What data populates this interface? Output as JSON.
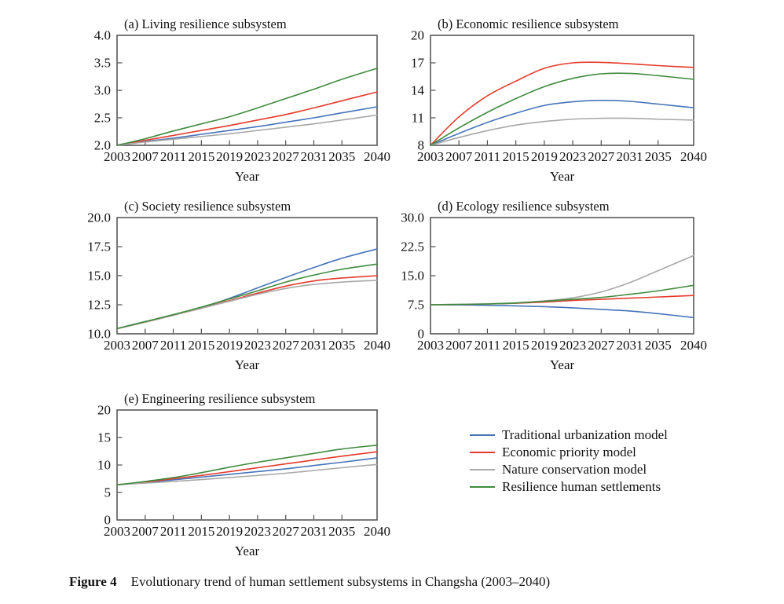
{
  "figure_caption": {
    "label": "Figure 4",
    "text": "Evolutionary trend of human settlement subsystems in Changsha (2003–2040)"
  },
  "legend": {
    "items": [
      {
        "label": "Traditional urbanization model",
        "color": "#4674b9"
      },
      {
        "label": "Economic priority model",
        "color": "#e53a2b"
      },
      {
        "label": "Nature conservation model",
        "color": "#a8a8a8"
      },
      {
        "label": "Resilience human settlements",
        "color": "#3f8b3d"
      }
    ]
  },
  "axis": {
    "xlabel": "Year",
    "xlim": [
      2003,
      2040
    ],
    "x_ticks": [
      2003,
      2007,
      2011,
      2015,
      2019,
      2023,
      2027,
      2031,
      2035,
      2040
    ],
    "color": "#4d4d4d",
    "text_color": "#111111"
  },
  "chart_data": [
    {
      "id": "a",
      "type": "line",
      "title": "(a) Living resilience subsystem",
      "xlabel": "Year",
      "x": [
        2003,
        2007,
        2011,
        2015,
        2019,
        2023,
        2027,
        2031,
        2035,
        2040
      ],
      "ylim": [
        2.0,
        4.0
      ],
      "y_ticks": [
        2.0,
        2.5,
        3.0,
        3.5,
        4.0
      ],
      "y_tick_labels": [
        "2.0",
        "2.5",
        "3.0",
        "3.5",
        "4.0"
      ],
      "series": [
        {
          "name": "Traditional urbanization model",
          "color": "#4674b9",
          "values": [
            2.0,
            2.07,
            2.13,
            2.2,
            2.27,
            2.34,
            2.42,
            2.5,
            2.59,
            2.7
          ]
        },
        {
          "name": "Economic priority model",
          "color": "#e53a2b",
          "values": [
            2.0,
            2.09,
            2.18,
            2.27,
            2.36,
            2.46,
            2.56,
            2.68,
            2.81,
            2.97
          ]
        },
        {
          "name": "Nature conservation model",
          "color": "#a8a8a8",
          "values": [
            2.0,
            2.06,
            2.11,
            2.16,
            2.21,
            2.27,
            2.33,
            2.39,
            2.46,
            2.55
          ]
        },
        {
          "name": "Resilience human settlements",
          "color": "#3f8b3d",
          "values": [
            2.0,
            2.12,
            2.26,
            2.39,
            2.52,
            2.68,
            2.85,
            3.02,
            3.2,
            3.4
          ]
        }
      ]
    },
    {
      "id": "b",
      "type": "line",
      "title": "(b) Economic resilience subsystem",
      "xlabel": "Year",
      "x": [
        2003,
        2007,
        2011,
        2015,
        2019,
        2023,
        2027,
        2031,
        2035,
        2040
      ],
      "ylim": [
        8,
        20
      ],
      "y_ticks": [
        8,
        11,
        14,
        17,
        20
      ],
      "y_tick_labels": [
        "8",
        "11",
        "14",
        "17",
        "20"
      ],
      "series": [
        {
          "name": "Traditional urbanization model",
          "color": "#4674b9",
          "values": [
            8,
            9.3,
            10.5,
            11.5,
            12.35,
            12.75,
            12.9,
            12.8,
            12.5,
            12.1
          ]
        },
        {
          "name": "Economic priority model",
          "color": "#e53a2b",
          "values": [
            8,
            11.1,
            13.4,
            15.0,
            16.4,
            17.0,
            17.05,
            16.9,
            16.7,
            16.5
          ]
        },
        {
          "name": "Nature conservation model",
          "color": "#a8a8a8",
          "values": [
            8,
            8.85,
            9.6,
            10.2,
            10.6,
            10.85,
            10.95,
            10.95,
            10.85,
            10.75
          ]
        },
        {
          "name": "Resilience human settlements",
          "color": "#3f8b3d",
          "values": [
            8,
            9.9,
            11.6,
            13.1,
            14.4,
            15.3,
            15.8,
            15.85,
            15.6,
            15.2
          ]
        }
      ]
    },
    {
      "id": "c",
      "type": "line",
      "title": "(c) Society resilience subsystem",
      "xlabel": "Year",
      "x": [
        2003,
        2007,
        2011,
        2015,
        2019,
        2023,
        2027,
        2031,
        2035,
        2040
      ],
      "ylim": [
        10,
        20
      ],
      "y_ticks": [
        10,
        12.5,
        15,
        17.5,
        20
      ],
      "y_tick_labels": [
        "10.0",
        "12.5",
        "15.0",
        "17.5",
        "20.0"
      ],
      "series": [
        {
          "name": "Traditional urbanization model",
          "color": "#4674b9",
          "values": [
            10.45,
            11.05,
            11.6,
            12.25,
            13.05,
            13.95,
            14.85,
            15.7,
            16.5,
            17.3
          ]
        },
        {
          "name": "Economic priority model",
          "color": "#e53a2b",
          "values": [
            10.45,
            11.0,
            11.6,
            12.2,
            12.85,
            13.5,
            14.1,
            14.55,
            14.8,
            15.0
          ]
        },
        {
          "name": "Nature conservation model",
          "color": "#a8a8a8",
          "values": [
            10.45,
            11.0,
            11.6,
            12.2,
            12.8,
            13.4,
            13.9,
            14.25,
            14.45,
            14.6
          ]
        },
        {
          "name": "Resilience human settlements",
          "color": "#3f8b3d",
          "values": [
            10.45,
            11.05,
            11.65,
            12.3,
            13.0,
            13.7,
            14.45,
            15.05,
            15.55,
            16.0
          ]
        }
      ]
    },
    {
      "id": "d",
      "type": "line",
      "title": "(d) Ecology resilience subsystem",
      "xlabel": "Year",
      "x": [
        2003,
        2007,
        2011,
        2015,
        2019,
        2023,
        2027,
        2031,
        2035,
        2040
      ],
      "ylim": [
        0,
        30
      ],
      "y_ticks": [
        0,
        7.5,
        15,
        22.5,
        30
      ],
      "y_tick_labels": [
        "0",
        "7.5",
        "15.0",
        "22.5",
        "30.0"
      ],
      "series": [
        {
          "name": "Traditional urbanization model",
          "color": "#4674b9",
          "values": [
            7.5,
            7.45,
            7.35,
            7.2,
            7.0,
            6.7,
            6.3,
            5.9,
            5.2,
            4.2
          ]
        },
        {
          "name": "Economic priority model",
          "color": "#e53a2b",
          "values": [
            7.5,
            7.55,
            7.7,
            7.9,
            8.2,
            8.6,
            8.9,
            9.2,
            9.5,
            9.9
          ]
        },
        {
          "name": "Nature conservation model",
          "color": "#a8a8a8",
          "values": [
            7.5,
            7.6,
            7.75,
            8.0,
            8.5,
            9.3,
            10.8,
            13.2,
            16.3,
            20.2
          ]
        },
        {
          "name": "Resilience human settlements",
          "color": "#3f8b3d",
          "values": [
            7.5,
            7.6,
            7.7,
            7.95,
            8.4,
            8.9,
            9.4,
            10.2,
            11.1,
            12.5
          ]
        }
      ]
    },
    {
      "id": "e",
      "type": "line",
      "title": "(e) Engineering resilience subsystem",
      "xlabel": "Year",
      "x": [
        2003,
        2007,
        2011,
        2015,
        2019,
        2023,
        2027,
        2031,
        2035,
        2040
      ],
      "ylim": [
        0,
        20
      ],
      "y_ticks": [
        0,
        5,
        10,
        15,
        20
      ],
      "y_tick_labels": [
        "0",
        "5",
        "10",
        "15",
        "20"
      ],
      "series": [
        {
          "name": "Traditional urbanization model",
          "color": "#4674b9",
          "values": [
            6.4,
            6.8,
            7.3,
            7.8,
            8.3,
            8.8,
            9.3,
            9.9,
            10.5,
            11.3
          ]
        },
        {
          "name": "Economic priority model",
          "color": "#e53a2b",
          "values": [
            6.4,
            6.9,
            7.5,
            8.1,
            8.8,
            9.5,
            10.2,
            10.9,
            11.6,
            12.4
          ]
        },
        {
          "name": "Nature conservation model",
          "color": "#a8a8a8",
          "values": [
            6.4,
            6.7,
            7.0,
            7.35,
            7.7,
            8.1,
            8.5,
            9.0,
            9.5,
            10.1
          ]
        },
        {
          "name": "Resilience human settlements",
          "color": "#3f8b3d",
          "values": [
            6.4,
            7.0,
            7.7,
            8.6,
            9.6,
            10.5,
            11.3,
            12.1,
            12.9,
            13.6
          ]
        }
      ]
    }
  ]
}
